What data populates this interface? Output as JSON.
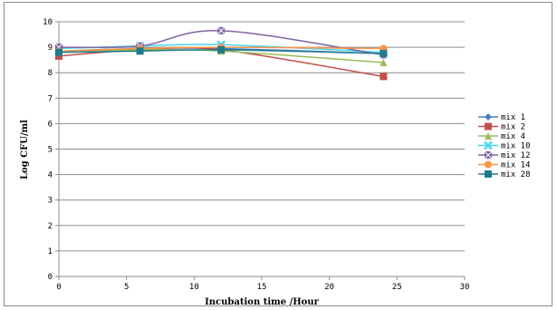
{
  "chart_data": {
    "type": "line",
    "title": "",
    "xlabel": "Incubation time /Hour",
    "ylabel": "Log CFU/ml",
    "xlim": [
      0,
      30
    ],
    "ylim": [
      0,
      10
    ],
    "xticks": [
      0,
      5,
      10,
      15,
      20,
      25,
      30
    ],
    "yticks": [
      0,
      1,
      2,
      3,
      4,
      5,
      6,
      7,
      8,
      9,
      10
    ],
    "grid": "horizontal",
    "legend_position": "right",
    "x": [
      0,
      6,
      12,
      24
    ],
    "series": [
      {
        "name": "mix  1",
        "values": [
          8.85,
          8.95,
          8.95,
          8.75
        ],
        "color": "#4f81bd",
        "marker": "diamond"
      },
      {
        "name": "mix  2",
        "values": [
          8.65,
          8.9,
          8.9,
          7.85
        ],
        "color": "#c0504d",
        "marker": "square"
      },
      {
        "name": "mix  4",
        "values": [
          8.85,
          8.9,
          8.85,
          8.4
        ],
        "color": "#9bbb59",
        "marker": "triangle"
      },
      {
        "name": "mix  10",
        "values": [
          8.95,
          9.05,
          9.1,
          8.8
        ],
        "color": "#4bd5ee",
        "marker": "x"
      },
      {
        "name": "mix  12",
        "values": [
          9.0,
          9.05,
          9.65,
          8.7
        ],
        "color": "#8064a2",
        "marker": "star"
      },
      {
        "name": "mix  14",
        "values": [
          8.85,
          8.95,
          9.0,
          8.95
        ],
        "color": "#f79646",
        "marker": "circle"
      },
      {
        "name": "mix  28",
        "values": [
          8.8,
          8.85,
          8.9,
          8.75
        ],
        "color": "#1f7a8c",
        "marker": "square"
      }
    ]
  }
}
